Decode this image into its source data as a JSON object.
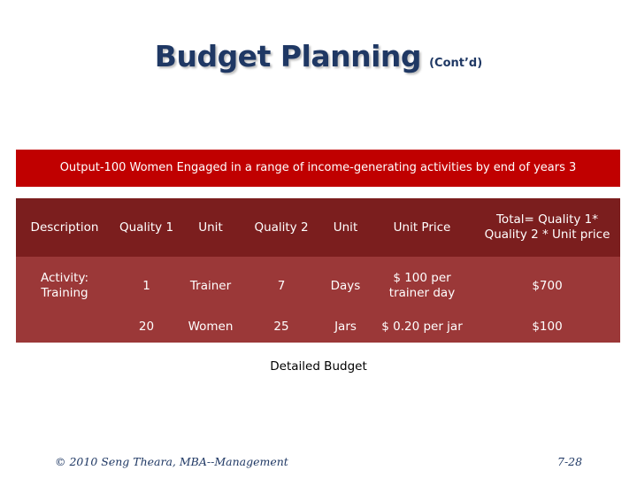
{
  "title": {
    "main": "Budget Planning",
    "sub": "(Cont’d)"
  },
  "output_bar": "Output-100 Women Engaged in a range of income-generating activities by end of years 3",
  "table": {
    "headers": [
      "Description",
      "Quality 1",
      "Unit",
      "Quality 2",
      "Unit",
      "Unit Price",
      "Total= Quality 1* Quality 2 * Unit price"
    ],
    "activity": "Activity: Training",
    "rows": [
      {
        "quality1": "1",
        "unit": "Trainer",
        "quality2": "7",
        "unit2": "Days",
        "unit_price": "$ 100 per trainer day",
        "total": "$700"
      },
      {
        "quality1": "20",
        "unit": "Women",
        "quality2": "25",
        "unit2": "Jars",
        "unit_price": "$ 0.20 per jar",
        "total": "$100"
      }
    ]
  },
  "caption": "Detailed Budget",
  "footer": {
    "left": "© 2010 Seng Theara, MBA--Management",
    "right": "7-28"
  },
  "colors": {
    "title": "#1f3864",
    "output_bar": "#c00000",
    "header_row": "#7b1e1e",
    "body_rows": "#9b3838"
  }
}
